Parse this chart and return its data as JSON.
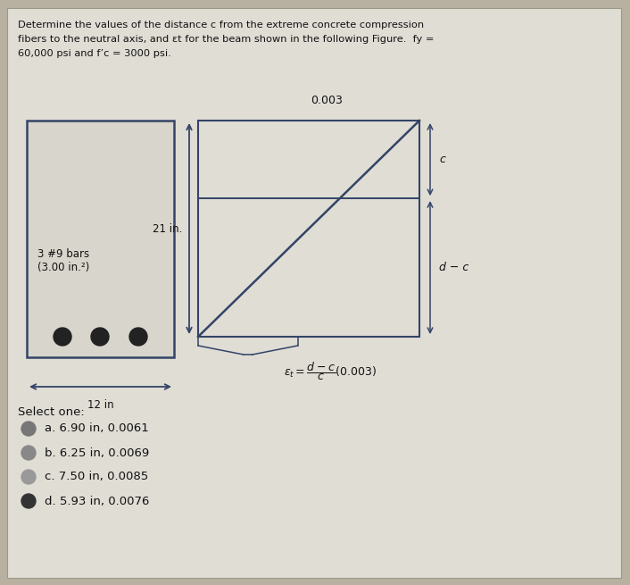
{
  "bg_color": "#b8b0a0",
  "card_color": "#e0ddd5",
  "title_text_line1": "Determine the values of the distance c from the extreme concrete compression",
  "title_text_line2": "fibers to the neutral axis, and εt for the beam shown in the following Figure.  fy =",
  "title_text_line3": "60,000 psi and f’c = 3000 psi.",
  "beam_label_line1": "3 #9 bars",
  "beam_label_line2": "(3.00 in.²)",
  "dim_label_21": "21 in.",
  "dim_label_12": "12 in",
  "label_0003": "0.003",
  "label_c": "c",
  "label_dc": "d − c",
  "select_text": "Select one:",
  "options": [
    "a. 6.90 in, 0.0061",
    "b. 6.25 in, 0.0069",
    "c. 7.50 in, 0.0085",
    "d. 5.93 in, 0.0076"
  ],
  "option_dot_colors": [
    "#777777",
    "#888888",
    "#999999",
    "#333333"
  ],
  "line_color": "#334466",
  "text_color": "#111111"
}
